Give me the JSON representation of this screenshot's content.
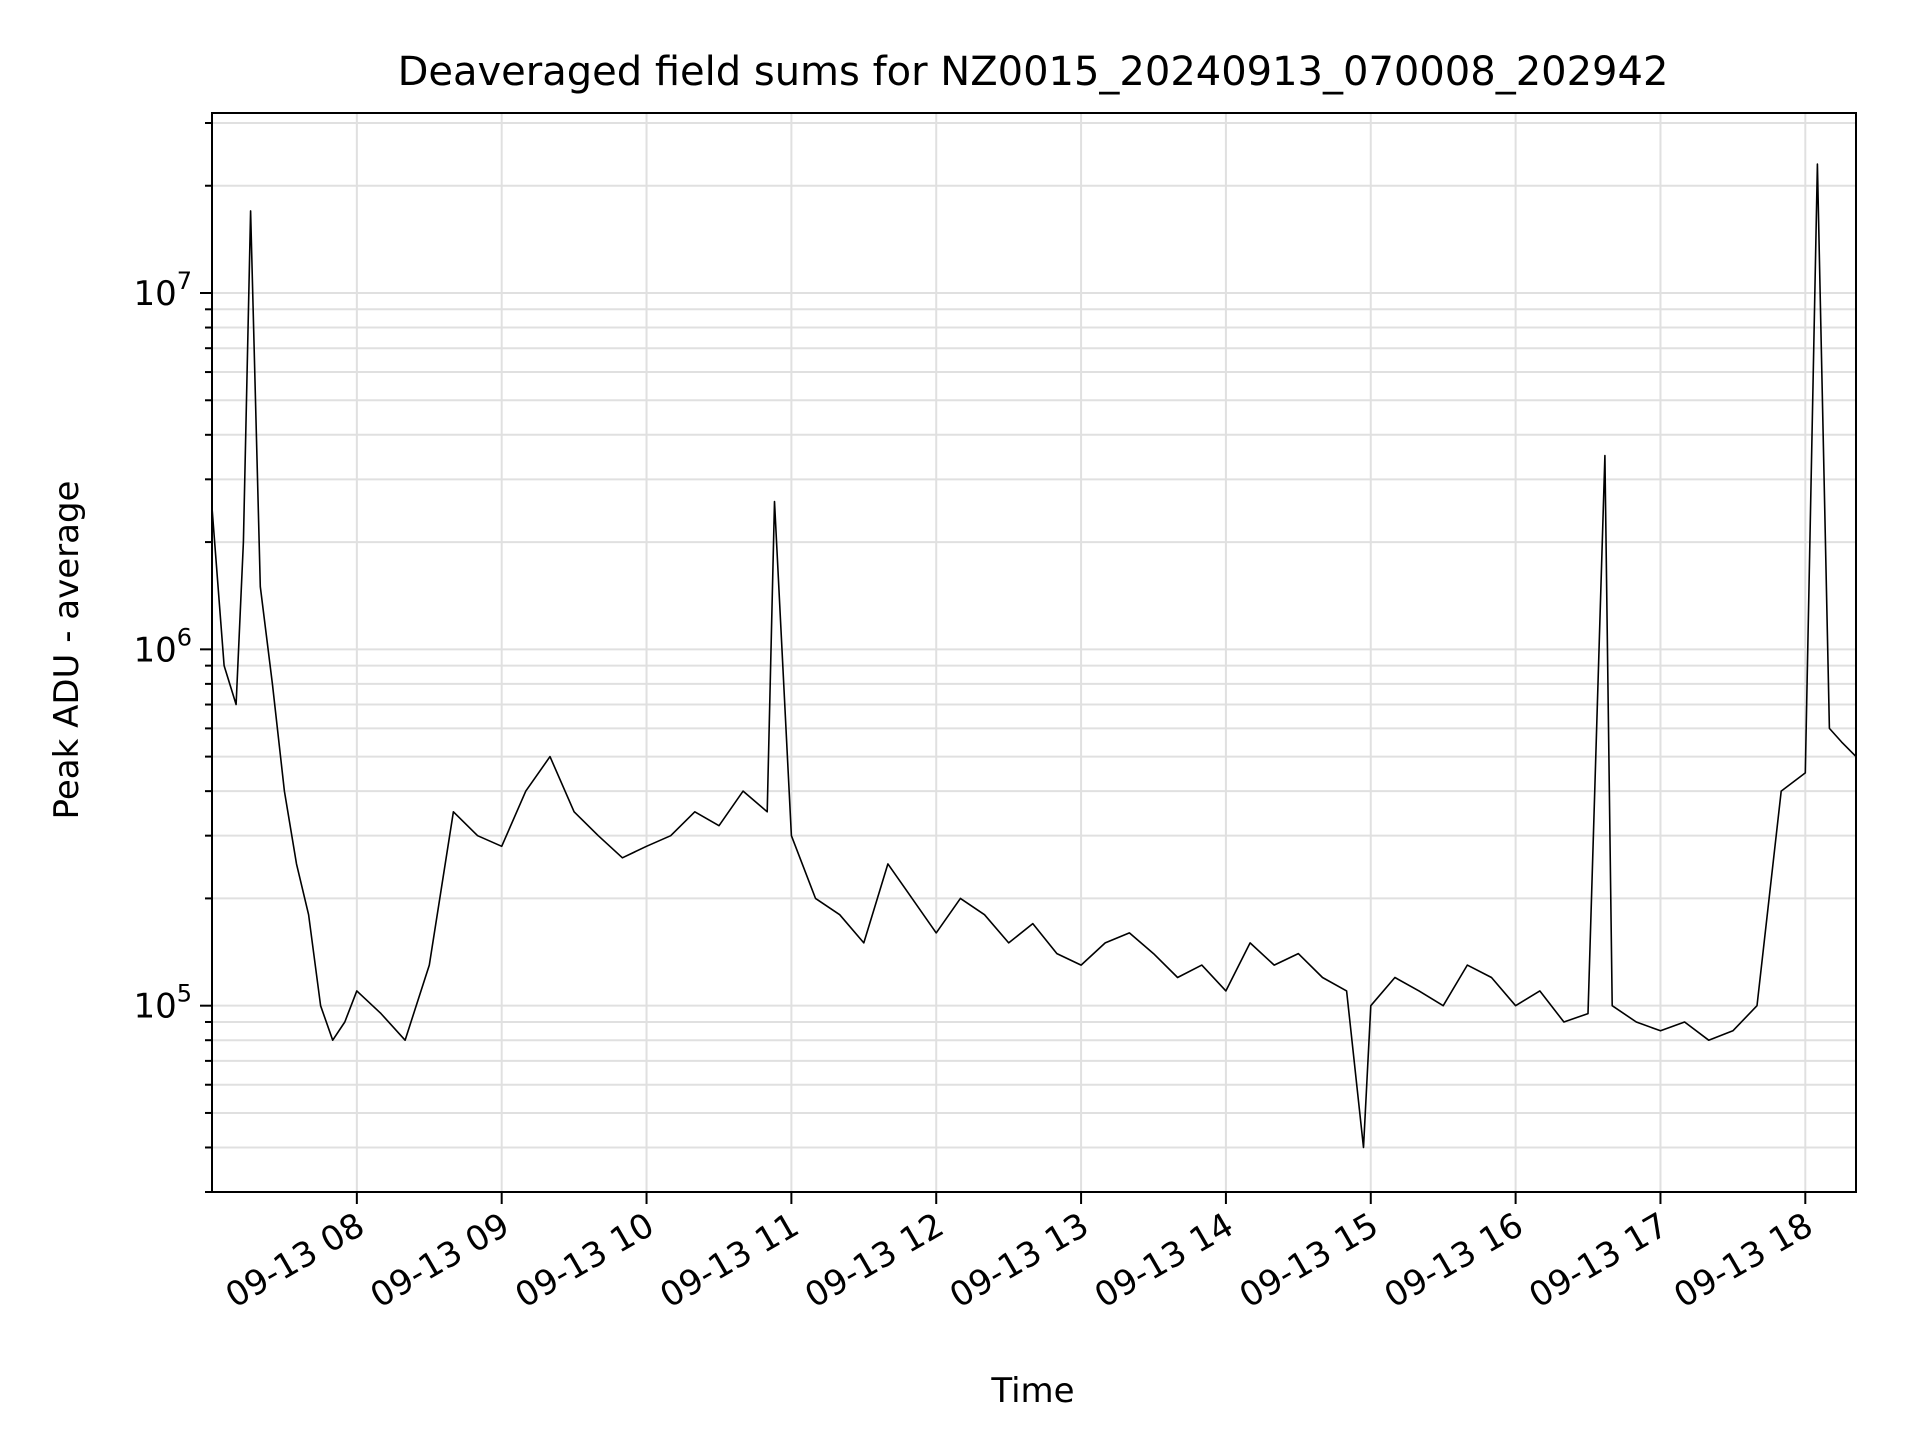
{
  "chart_data": {
    "type": "line",
    "title": "Deaveraged field sums for NZ0015_20240913_070008_202942",
    "xlabel": "Time",
    "ylabel": "Peak ADU - average",
    "yscale": "log",
    "grid": true,
    "line_color": "#000000",
    "grid_color": "#e0e0e0",
    "xlim": [
      "2024-09-13 07:00",
      "2024-09-13 18:21"
    ],
    "ylim": [
      30000,
      32000000
    ],
    "x_ticks": [
      {
        "value": "2024-09-13 08:00",
        "label": "09-13 08"
      },
      {
        "value": "2024-09-13 09:00",
        "label": "09-13 09"
      },
      {
        "value": "2024-09-13 10:00",
        "label": "09-13 10"
      },
      {
        "value": "2024-09-13 11:00",
        "label": "09-13 11"
      },
      {
        "value": "2024-09-13 12:00",
        "label": "09-13 12"
      },
      {
        "value": "2024-09-13 13:00",
        "label": "09-13 13"
      },
      {
        "value": "2024-09-13 14:00",
        "label": "09-13 14"
      },
      {
        "value": "2024-09-13 15:00",
        "label": "09-13 15"
      },
      {
        "value": "2024-09-13 16:00",
        "label": "09-13 16"
      },
      {
        "value": "2024-09-13 17:00",
        "label": "09-13 17"
      },
      {
        "value": "2024-09-13 18:00",
        "label": "09-13 18"
      }
    ],
    "y_ticks": [
      {
        "value": 100000,
        "base": "10",
        "exp": "5"
      },
      {
        "value": 1000000,
        "base": "10",
        "exp": "6"
      },
      {
        "value": 10000000,
        "base": "10",
        "exp": "7"
      }
    ],
    "series": [
      {
        "x": [
          "2024-09-13 07:00",
          "2024-09-13 07:05",
          "2024-09-13 07:10",
          "2024-09-13 07:13",
          "2024-09-13 07:16",
          "2024-09-13 07:20",
          "2024-09-13 07:25",
          "2024-09-13 07:30",
          "2024-09-13 07:35",
          "2024-09-13 07:40",
          "2024-09-13 07:45",
          "2024-09-13 07:50",
          "2024-09-13 07:55",
          "2024-09-13 08:00",
          "2024-09-13 08:10",
          "2024-09-13 08:20",
          "2024-09-13 08:30",
          "2024-09-13 08:40",
          "2024-09-13 08:50",
          "2024-09-13 09:00",
          "2024-09-13 09:10",
          "2024-09-13 09:20",
          "2024-09-13 09:30",
          "2024-09-13 09:40",
          "2024-09-13 09:50",
          "2024-09-13 10:00",
          "2024-09-13 10:10",
          "2024-09-13 10:20",
          "2024-09-13 10:30",
          "2024-09-13 10:40",
          "2024-09-13 10:50",
          "2024-09-13 10:53",
          "2024-09-13 11:00",
          "2024-09-13 11:10",
          "2024-09-13 11:20",
          "2024-09-13 11:30",
          "2024-09-13 11:40",
          "2024-09-13 11:50",
          "2024-09-13 12:00",
          "2024-09-13 12:10",
          "2024-09-13 12:20",
          "2024-09-13 12:30",
          "2024-09-13 12:40",
          "2024-09-13 12:50",
          "2024-09-13 13:00",
          "2024-09-13 13:10",
          "2024-09-13 13:20",
          "2024-09-13 13:30",
          "2024-09-13 13:40",
          "2024-09-13 13:50",
          "2024-09-13 14:00",
          "2024-09-13 14:10",
          "2024-09-13 14:20",
          "2024-09-13 14:30",
          "2024-09-13 14:40",
          "2024-09-13 14:50",
          "2024-09-13 14:57",
          "2024-09-13 15:00",
          "2024-09-13 15:10",
          "2024-09-13 15:20",
          "2024-09-13 15:30",
          "2024-09-13 15:40",
          "2024-09-13 15:50",
          "2024-09-13 16:00",
          "2024-09-13 16:10",
          "2024-09-13 16:20",
          "2024-09-13 16:30",
          "2024-09-13 16:37",
          "2024-09-13 16:40",
          "2024-09-13 16:50",
          "2024-09-13 17:00",
          "2024-09-13 17:10",
          "2024-09-13 17:20",
          "2024-09-13 17:30",
          "2024-09-13 17:40",
          "2024-09-13 17:50",
          "2024-09-13 18:00",
          "2024-09-13 18:05",
          "2024-09-13 18:10",
          "2024-09-13 18:15",
          "2024-09-13 18:21"
        ],
        "y": [
          2500000,
          900000,
          700000,
          2000000,
          17000000,
          1500000,
          800000,
          400000,
          250000,
          180000,
          100000,
          80000,
          90000,
          110000,
          95000,
          80000,
          130000,
          350000,
          300000,
          280000,
          400000,
          500000,
          350000,
          300000,
          260000,
          280000,
          300000,
          350000,
          320000,
          400000,
          350000,
          2600000,
          300000,
          200000,
          180000,
          150000,
          250000,
          200000,
          160000,
          200000,
          180000,
          150000,
          170000,
          140000,
          130000,
          150000,
          160000,
          140000,
          120000,
          130000,
          110000,
          150000,
          130000,
          140000,
          120000,
          110000,
          40000,
          100000,
          120000,
          110000,
          100000,
          130000,
          120000,
          100000,
          110000,
          90000,
          95000,
          3500000,
          100000,
          90000,
          85000,
          90000,
          80000,
          85000,
          100000,
          400000,
          450000,
          23000000,
          600000,
          550000,
          500000
        ]
      }
    ]
  }
}
